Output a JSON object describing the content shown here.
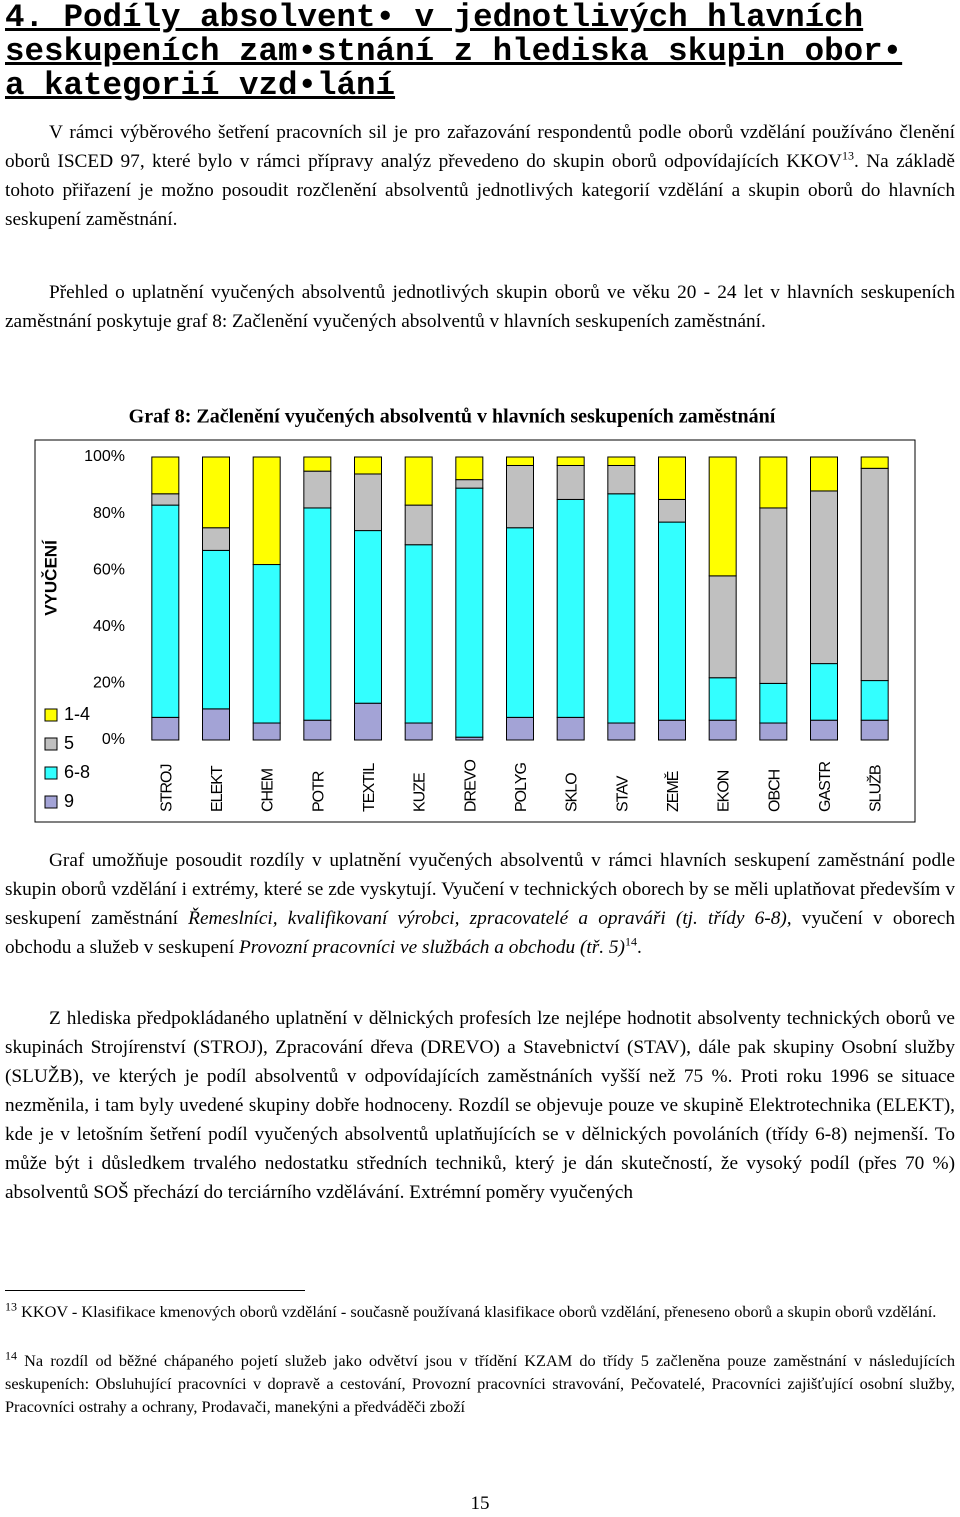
{
  "heading": [
    "4. Podíly absolvent• v jednotlivých hlavních",
    "seskupeních zam•stnání z hlediska skupin obor•",
    "a kategorií vzd•lání"
  ],
  "paragraphs": [
    [
      "V rámci výběrového šetření pracovních sil je pro zařazování respondentů podle oborů vzdělání používáno členění oborů ISCED 97, které bylo v rámci přípravy analýz převedeno do skupin oborů odpovídajících KKOV",
      "13",
      ". Na základě tohoto přiřazení je možno posoudit rozčlenění absolventů jednotlivých kategorií vzdělání a skupin oborů do hlavních seskupení zaměstnání."
    ],
    [
      "Přehled o uplatnění vyučených absolventů jednotlivých skupin oborů ve věku 20 - 24 let v hlavních seskupeních zaměstnání poskytuje graf 8: Začlenění vyučených absolventů v hlavních seskupeních zaměstnání."
    ],
    [
      "Graf umožňuje posoudit rozdíly v uplatnění vyučených absolventů v rámci hlavních seskupení zaměstnání podle skupin oborů vzdělání i extrémy, které se zde vyskytují. Vyučení v technických oborech by se měli uplatňovat především v seskupení zaměstnání ",
      "Řemeslníci, kvalifikovaní výrobci, zpracovatelé a opraváři (tj. třídy 6-8),",
      " vyučení v oborech obchodu a služeb v seskupení ",
      "Provozní pracovníci ve službách a obchodu (tř. 5)",
      "14",
      "."
    ],
    [
      "Z hlediska předpokládaného uplatnění v dělnických profesích lze nejlépe hodnotit absolventy technických oborů ve skupinách Strojírenství (STROJ), Zpracování dřeva (DREVO) a Stavebnictví (STAV), dále pak skupiny Osobní služby (SLUŽB), ve kterých je podíl absolventů v odpovídajících zaměstnáních vyšší než 75 %. Proti roku 1996 se situace nezměnila, i tam byly uvedené skupiny dobře hodnoceny. Rozdíl se objevuje pouze ve skupině Elektrotechnika (ELEKT), kde je v letošním šetření podíl vyučených absolventů uplatňujících se v dělnických povoláních (třídy 6-8) nejmenší. To může být i důsledkem trvalého nedostatku středních techniků, který je dán skutečností, že vysoký podíl (přes 70 %) absolventů SOŠ přechází do terciárního vzdělávání. Extrémní poměry vyučených"
    ]
  ],
  "footnotes": [
    [
      "13",
      "KKOV - Klasifikace kmenových oborů vzdělání - současně používaná klasifikace oborů vzdělání, přeneseno oborů a skupin oborů vzdělání."
    ],
    [
      "14",
      "Na rozdíl od běžné chápaného pojetí služeb jako odvětví jsou v třídění KZAM do třídy 5 začleněna pouze zaměstnání v následujících seskupeních: Obsluhující pracovníci v dopravě a cestování, Provozní pracovníci stravování, Pečovatelé, Pracovníci zajišťující osobní služby, Pracovníci ostrahy a ochrany, Prodavači, manekýni a předváděči zboží"
    ]
  ],
  "page_number": "15",
  "chart_data": {
    "type": "stacked_bar",
    "title": "Graf 8: Začlenění vyučených absolventů v hlavních seskupeních zaměstnání",
    "y_label": "VYUČENÍ",
    "categories": [
      "STROJ",
      "ELEKT",
      "CHEM",
      "POTR",
      "TEXTIL",
      "KUZE",
      "DREVO",
      "POLYG",
      "SKLO",
      "STAV",
      "ZEMĚ",
      "EKON",
      "OBCH",
      "GASTR",
      "SLUŽB"
    ],
    "series": [
      {
        "name": "1-4",
        "color": "#ffff00",
        "values": [
          13,
          25,
          38,
          5,
          6,
          17,
          8,
          3,
          3,
          3,
          15,
          42,
          18,
          12,
          4
        ]
      },
      {
        "name": "5",
        "color": "#c0c0c0",
        "values": [
          4,
          8,
          0,
          13,
          20,
          14,
          3,
          22,
          12,
          10,
          8,
          36,
          62,
          61,
          75
        ]
      },
      {
        "name": "6-8",
        "color": "#33ffff",
        "values": [
          75,
          56,
          56,
          75,
          61,
          63,
          88,
          67,
          77,
          81,
          70,
          15,
          14,
          20,
          14
        ]
      },
      {
        "name": "9",
        "color": "#a3a3d6",
        "values": [
          8,
          11,
          6,
          7,
          13,
          6,
          1,
          8,
          8,
          6,
          7,
          7,
          6,
          7,
          7
        ]
      }
    ],
    "ylim": [
      0,
      100
    ],
    "yticks": [
      {
        "value": 0,
        "label": "0%"
      },
      {
        "value": 20,
        "label": "20%"
      },
      {
        "value": 40,
        "label": "40%"
      },
      {
        "value": 60,
        "label": "60%"
      },
      {
        "value": 80,
        "label": "80%"
      },
      {
        "value": 100,
        "label": "100%"
      }
    ],
    "grid": false,
    "legend": "left"
  }
}
